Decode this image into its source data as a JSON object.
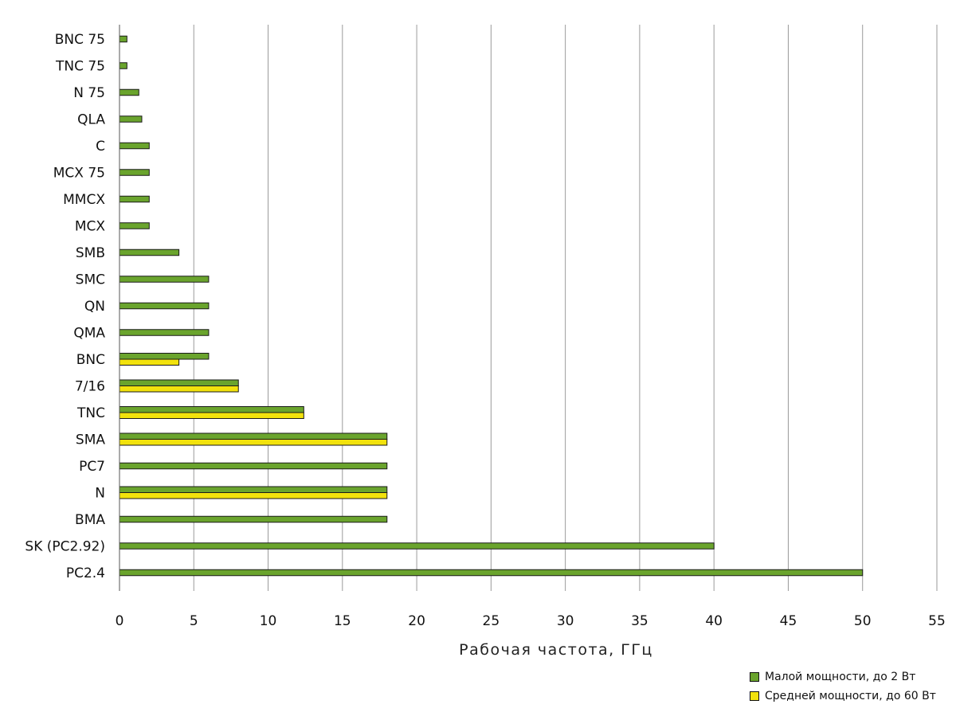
{
  "chart_data": {
    "type": "bar",
    "orientation": "horizontal",
    "categories": [
      "BNC 75",
      "TNC 75",
      "N 75",
      "QLA",
      "C",
      "MCX 75",
      "MMCX",
      "MCX",
      "SMB",
      "SMC",
      "QN",
      "QMA",
      "BNC",
      "7/16",
      "TNC",
      "SMA",
      "PC7",
      "N",
      "BMA",
      "SK (PC2.92)",
      "PC2.4"
    ],
    "series": [
      {
        "name": "Малой мощности, до 2 Вт",
        "color": "#6aa42d",
        "values": [
          0.5,
          0.5,
          1.3,
          1.5,
          2,
          2,
          2,
          2,
          4,
          6,
          6,
          6,
          6,
          8,
          12.4,
          18,
          18,
          18,
          18,
          40,
          50
        ]
      },
      {
        "name": "Средней мощности, до 60 Вт",
        "color": "#f2e20c",
        "values": [
          null,
          null,
          null,
          null,
          null,
          null,
          null,
          null,
          null,
          null,
          null,
          null,
          4,
          8,
          12.4,
          18,
          null,
          18,
          null,
          null,
          null
        ]
      }
    ],
    "xlabel": "Рабочая частота, ГГц",
    "xlim": [
      0,
      55
    ],
    "xticks": [
      0,
      5,
      10,
      15,
      20,
      25,
      30,
      35,
      40,
      45,
      50,
      55
    ],
    "grid": "vertical",
    "legend_position": "bottom-right"
  }
}
